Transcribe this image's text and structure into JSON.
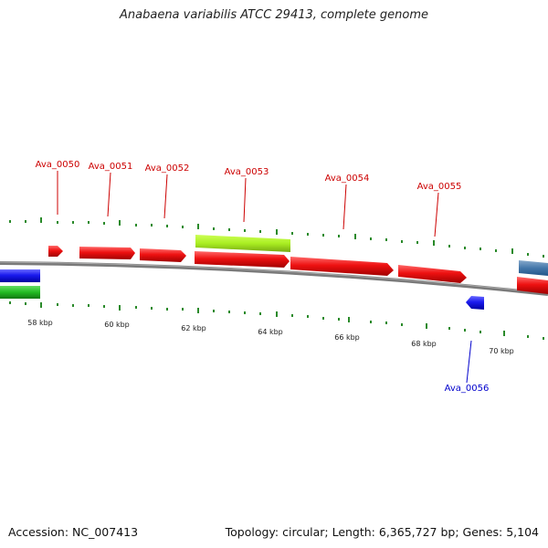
{
  "title": "Anabaena variabilis ATCC 29413, complete genome",
  "footer": {
    "accession": "Accession: NC_007413",
    "summary": "Topology: circular; Length: 6,365,727 bp; Genes: 5,104"
  },
  "colors": {
    "forward_gene": "#ee1111",
    "reverse_gene": "#1a1aee",
    "rna_green": "#22bb22",
    "lime_feature": "#aaee22",
    "steel_feature": "#4477aa",
    "backbone": "#888888",
    "ticks": "#2a8a2a"
  },
  "scale_labels": [
    "58 kbp",
    "60 kbp",
    "62 kbp",
    "64 kbp",
    "66 kbp",
    "68 kbp",
    "70 kbp"
  ],
  "gene_labels": [
    {
      "name": "Ava_0050",
      "strand": "forward"
    },
    {
      "name": "Ava_0051",
      "strand": "forward"
    },
    {
      "name": "Ava_0052",
      "strand": "forward"
    },
    {
      "name": "Ava_0053",
      "strand": "forward"
    },
    {
      "name": "Ava_0054",
      "strand": "forward"
    },
    {
      "name": "Ava_0055",
      "strand": "forward"
    },
    {
      "name": "Ava_0056",
      "strand": "reverse"
    }
  ]
}
